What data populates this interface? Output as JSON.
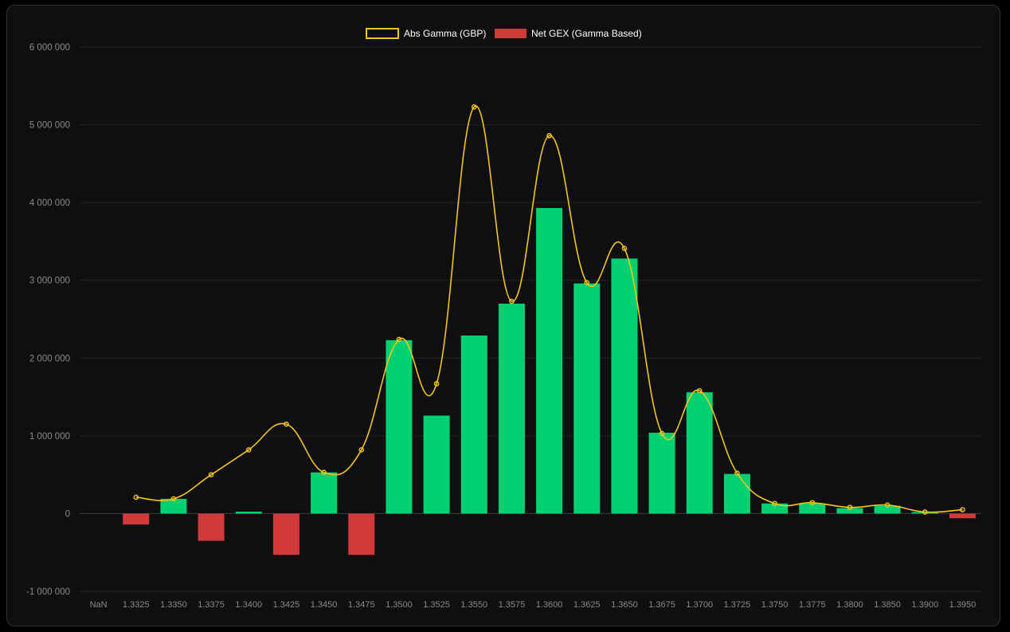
{
  "chart_data": {
    "type": "bar",
    "categories": [
      "NaN",
      "1.3325",
      "1.3350",
      "1.3375",
      "1.3400",
      "1.3425",
      "1.3450",
      "1.3475",
      "1.3500",
      "1.3525",
      "1.3550",
      "1.3575",
      "1.3600",
      "1.3625",
      "1.3650",
      "1.3675",
      "1.3700",
      "1.3725",
      "1.3750",
      "1.3775",
      "1.3800",
      "1.3850",
      "1.3900",
      "1.3950"
    ],
    "series": [
      {
        "name": "Abs Gamma (GBP)",
        "type": "line",
        "color": "#f5c518",
        "values": [
          null,
          210000,
          190000,
          500000,
          820000,
          1150000,
          530000,
          820000,
          2240000,
          1670000,
          5230000,
          2730000,
          4860000,
          2970000,
          3410000,
          1030000,
          1580000,
          520000,
          130000,
          140000,
          80000,
          110000,
          20000,
          50000
        ]
      },
      {
        "name": "Net GEX (Gamma Based)",
        "type": "bar",
        "color_positive": "#00d170",
        "color_negative": "#d13a3a",
        "values": [
          null,
          -140000,
          190000,
          -350000,
          25000,
          -530000,
          530000,
          -530000,
          2230000,
          1260000,
          2290000,
          2700000,
          3930000,
          2960000,
          3280000,
          1040000,
          1560000,
          510000,
          130000,
          130000,
          70000,
          100000,
          20000,
          -60000
        ]
      }
    ],
    "ylim": [
      -1000000,
      6000000
    ],
    "yticks": [
      -1000000,
      0,
      1000000,
      2000000,
      3000000,
      4000000,
      5000000,
      6000000
    ],
    "ytick_labels": [
      "-1 000 000",
      "0",
      "1 000 000",
      "2 000 000",
      "3 000 000",
      "4 000 000",
      "5 000 000",
      "6 000 000"
    ],
    "legend": "top-center",
    "grid": true,
    "title": "",
    "xlabel": "",
    "ylabel": ""
  }
}
